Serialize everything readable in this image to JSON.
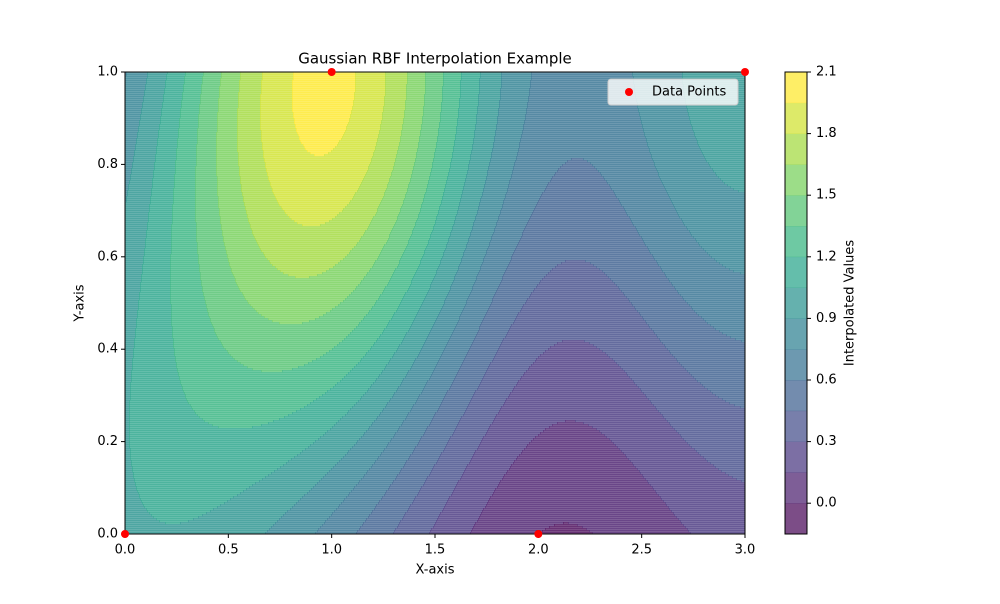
{
  "chart_data": {
    "type": "contour",
    "title": "Gaussian RBF Interpolation Example",
    "x_label": "X-axis",
    "y_label": "Y-axis",
    "colorbar_label": "Interpolated Values",
    "colormap": "viridis",
    "series": [
      {
        "name": "Data Points",
        "color": "#ff0000",
        "x": [
          0,
          1,
          2,
          3
        ],
        "y": [
          0,
          1,
          0,
          1
        ],
        "values": [
          1,
          2,
          0,
          1
        ]
      }
    ],
    "levels": [
      -0.15,
      0,
      0.15,
      0.3,
      0.45,
      0.6,
      0.75,
      0.9,
      1.05,
      1.2,
      1.35,
      1.5,
      1.65,
      1.8,
      1.95,
      2.1
    ],
    "xlim": [
      0,
      3
    ],
    "ylim": [
      0,
      1
    ],
    "xticks": [
      {
        "value": 0,
        "label": "0.0"
      },
      {
        "value": 0.5,
        "label": "0.5"
      },
      {
        "value": 1,
        "label": "1.0"
      },
      {
        "value": 1.5,
        "label": "1.5"
      },
      {
        "value": 2,
        "label": "2.0"
      },
      {
        "value": 2.5,
        "label": "2.5"
      },
      {
        "value": 3,
        "label": "3.0"
      }
    ],
    "yticks": [
      {
        "value": 0,
        "label": "0.0"
      },
      {
        "value": 0.2,
        "label": "0.2"
      },
      {
        "value": 0.4,
        "label": "0.4"
      },
      {
        "value": 0.6,
        "label": "0.6"
      },
      {
        "value": 0.8,
        "label": "0.8"
      },
      {
        "value": 1,
        "label": "1.0"
      }
    ],
    "colorbar_ticks": [
      {
        "value": 0,
        "label": "0.0"
      },
      {
        "value": 0.3,
        "label": "0.3"
      },
      {
        "value": 0.6,
        "label": "0.6"
      },
      {
        "value": 0.9,
        "label": "0.9"
      },
      {
        "value": 1.2,
        "label": "1.2"
      },
      {
        "value": 1.5,
        "label": "1.5"
      },
      {
        "value": 1.8,
        "label": "1.8"
      },
      {
        "value": 2.1,
        "label": "2.1"
      }
    ],
    "legend": "upper right"
  }
}
